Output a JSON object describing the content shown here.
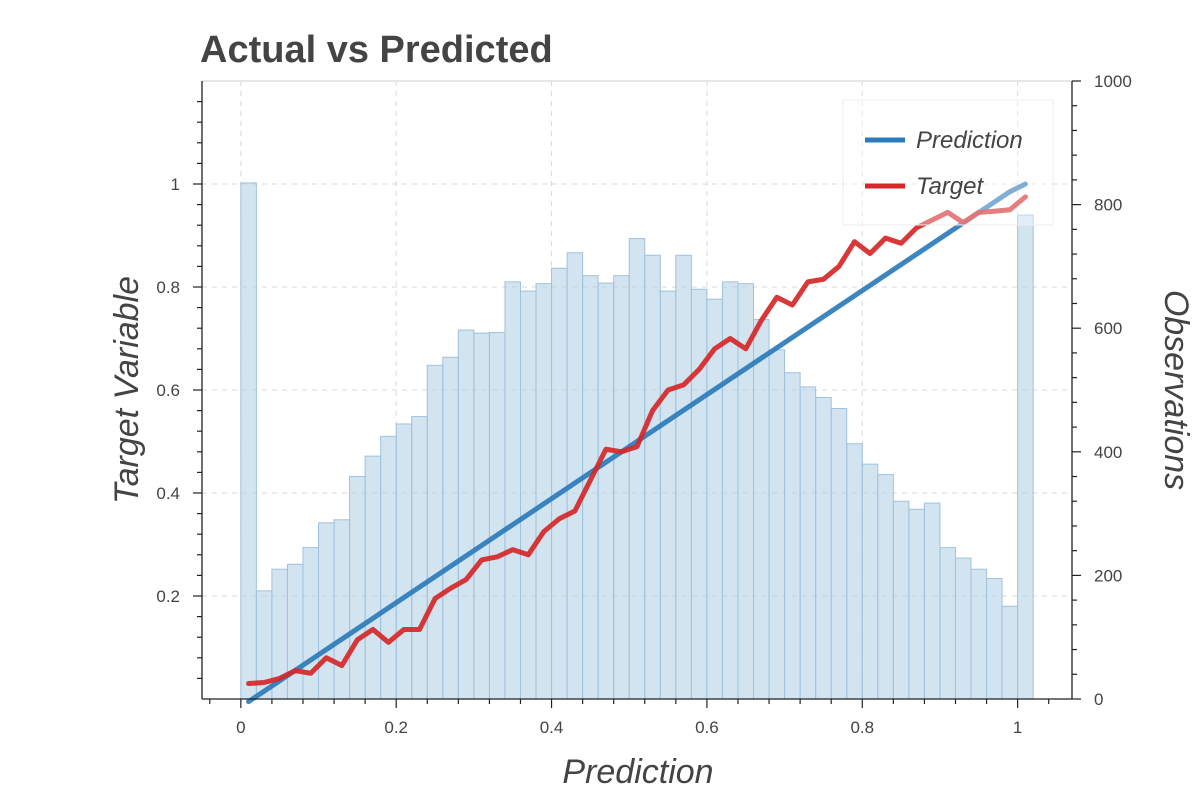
{
  "chart_data": {
    "type": "bar+line",
    "title": "Actual vs Predicted",
    "xlabel": "Prediction",
    "ylabel": "Target Variable",
    "y2label": "Observations",
    "xlim": [
      -0.05,
      1.07
    ],
    "ylim": [
      0,
      1.2
    ],
    "y2lim": [
      0,
      1000
    ],
    "grid": true,
    "legend_position": "top-right",
    "x_ticks": [
      0,
      0.2,
      0.4,
      0.6,
      0.8,
      1
    ],
    "x_tick_labels": [
      "0",
      "0.2",
      "0.4",
      "0.6",
      "0.8",
      "1"
    ],
    "y_ticks": [
      0.2,
      0.4,
      0.6,
      0.8,
      1
    ],
    "y_tick_labels": [
      "0.2",
      "0.4",
      "0.6",
      "0.8",
      "1"
    ],
    "y2_ticks": [
      0,
      200,
      400,
      600,
      800,
      1000
    ],
    "y2_tick_labels": [
      "0",
      "200",
      "400",
      "600",
      "800",
      "1000"
    ],
    "histogram": {
      "bin_width": 0.02,
      "color": "#aecde6",
      "x": [
        0.01,
        0.03,
        0.05,
        0.07,
        0.09,
        0.11,
        0.13,
        0.15,
        0.17,
        0.19,
        0.21,
        0.23,
        0.25,
        0.27,
        0.29,
        0.31,
        0.33,
        0.35,
        0.37,
        0.39,
        0.41,
        0.43,
        0.45,
        0.47,
        0.49,
        0.51,
        0.53,
        0.55,
        0.57,
        0.59,
        0.61,
        0.63,
        0.65,
        0.67,
        0.69,
        0.71,
        0.73,
        0.75,
        0.77,
        0.79,
        0.81,
        0.83,
        0.85,
        0.87,
        0.89,
        0.91,
        0.93,
        0.95,
        0.97,
        0.99,
        1.01
      ],
      "counts": [
        835,
        175,
        210,
        218,
        245,
        285,
        290,
        360,
        393,
        425,
        445,
        457,
        540,
        553,
        597,
        592,
        593,
        675,
        660,
        672,
        697,
        722,
        685,
        673,
        685,
        745,
        718,
        660,
        718,
        663,
        647,
        675,
        672,
        614,
        565,
        528,
        505,
        488,
        470,
        413,
        380,
        363,
        320,
        307,
        317,
        245,
        228,
        210,
        195,
        150,
        783
      ]
    },
    "series": [
      {
        "name": "Prediction",
        "color": "#2b7bba",
        "x": [
          0.01,
          0.99,
          1.01
        ],
        "y": [
          -0.005,
          0.985,
          1.0
        ]
      },
      {
        "name": "Target",
        "color": "#d62728",
        "x": [
          0.01,
          0.03,
          0.05,
          0.07,
          0.09,
          0.11,
          0.13,
          0.15,
          0.17,
          0.19,
          0.21,
          0.23,
          0.25,
          0.27,
          0.29,
          0.31,
          0.33,
          0.35,
          0.37,
          0.39,
          0.41,
          0.43,
          0.45,
          0.47,
          0.49,
          0.51,
          0.53,
          0.55,
          0.57,
          0.59,
          0.61,
          0.63,
          0.65,
          0.67,
          0.69,
          0.71,
          0.73,
          0.75,
          0.77,
          0.79,
          0.81,
          0.83,
          0.85,
          0.87,
          0.89,
          0.91,
          0.93,
          0.95,
          0.97,
          0.99,
          1.01
        ],
        "y": [
          0.03,
          0.032,
          0.04,
          0.055,
          0.05,
          0.08,
          0.065,
          0.115,
          0.135,
          0.11,
          0.135,
          0.135,
          0.195,
          0.215,
          0.232,
          0.27,
          0.276,
          0.29,
          0.28,
          0.325,
          0.35,
          0.365,
          0.425,
          0.485,
          0.48,
          0.49,
          0.56,
          0.6,
          0.61,
          0.64,
          0.68,
          0.7,
          0.68,
          0.735,
          0.78,
          0.765,
          0.81,
          0.815,
          0.84,
          0.888,
          0.865,
          0.895,
          0.885,
          0.915,
          0.93,
          0.945,
          0.925,
          0.945,
          0.947,
          0.95,
          0.975
        ]
      }
    ]
  }
}
